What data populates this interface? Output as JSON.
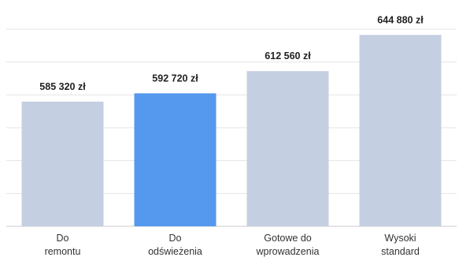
{
  "header_text": "",
  "chart_data": {
    "type": "bar",
    "title": "",
    "xlabel": "",
    "ylabel": "",
    "categories": [
      [
        "Do",
        "remontu"
      ],
      [
        "Do",
        "odświeżenia"
      ],
      [
        "Gotowe do",
        "wprowadzenia"
      ],
      [
        "Wysoki",
        "standard"
      ]
    ],
    "values": [
      585320,
      592720,
      612560,
      644880
    ],
    "value_labels": [
      "585 320 zł",
      "592 720 zł",
      "612 560 zł",
      "644 880 zł"
    ],
    "ylim": [
      474000,
      650000
    ],
    "highlight_index": 1,
    "grid": true,
    "legend": "none",
    "colors": {
      "bar": "#c5cfe2",
      "highlight": "#5599ee",
      "grid": "#e4e4e4",
      "axis": "#cccccc"
    }
  }
}
